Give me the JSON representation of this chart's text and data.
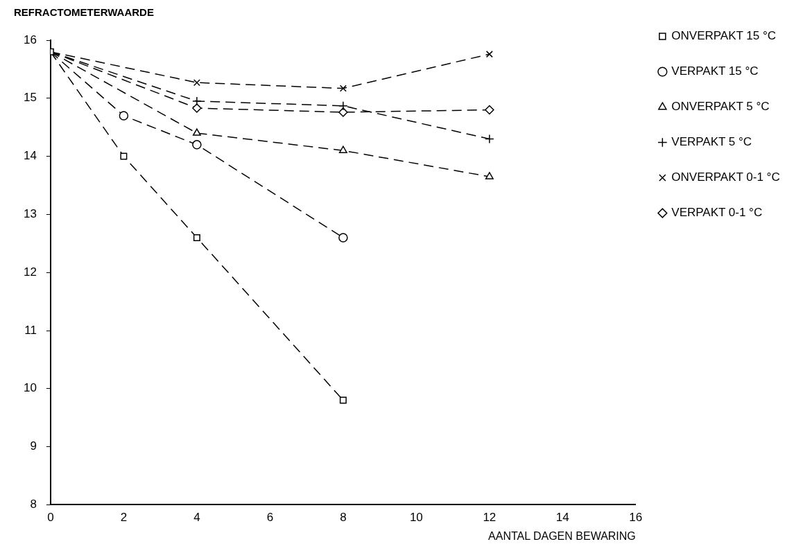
{
  "chart_data": {
    "type": "line",
    "ylabel": "REFRACTOMETERWAARDE",
    "xlabel": "AANTAL DAGEN BEWARING",
    "xlim": [
      0,
      16
    ],
    "xticks": [
      0,
      2,
      4,
      6,
      8,
      10,
      12,
      14,
      16
    ],
    "ylim": [
      8,
      16
    ],
    "yticks": [
      8,
      9,
      10,
      11,
      12,
      13,
      14,
      15,
      16
    ],
    "grid": false,
    "legend": "right",
    "line_style": "dashed",
    "series": [
      {
        "name": "ONVERPAKT 15 °C",
        "color": "#000000",
        "marker": "square",
        "x": [
          0,
          2,
          4,
          8
        ],
        "values": [
          15.8,
          14.0,
          12.6,
          9.8
        ]
      },
      {
        "name": "VERPAKT 15 °C",
        "color": "#000000",
        "marker": "circle",
        "x": [
          0,
          2,
          4,
          8
        ],
        "values": [
          15.8,
          14.7,
          14.2,
          12.6
        ]
      },
      {
        "name": "ONVERPAKT 5 °C",
        "color": "#000000",
        "marker": "triangle",
        "x": [
          0,
          4,
          8,
          12
        ],
        "values": [
          15.8,
          14.4,
          14.1,
          13.65
        ]
      },
      {
        "name": "VERPAKT 5 °C",
        "color": "#000000",
        "marker": "cross",
        "x": [
          0,
          4,
          8,
          12
        ],
        "values": [
          15.8,
          14.95,
          14.87,
          14.3
        ]
      },
      {
        "name": "ONVERPAKT 0-1 °C",
        "color": "#000000",
        "marker": "x",
        "x": [
          0,
          4,
          8,
          12
        ],
        "values": [
          15.8,
          15.27,
          15.17,
          15.76
        ]
      },
      {
        "name": "VERPAKT 0-1 °C",
        "color": "#000000",
        "marker": "diamond",
        "x": [
          0,
          4,
          8,
          12
        ],
        "values": [
          15.8,
          14.83,
          14.76,
          14.8
        ]
      }
    ]
  }
}
